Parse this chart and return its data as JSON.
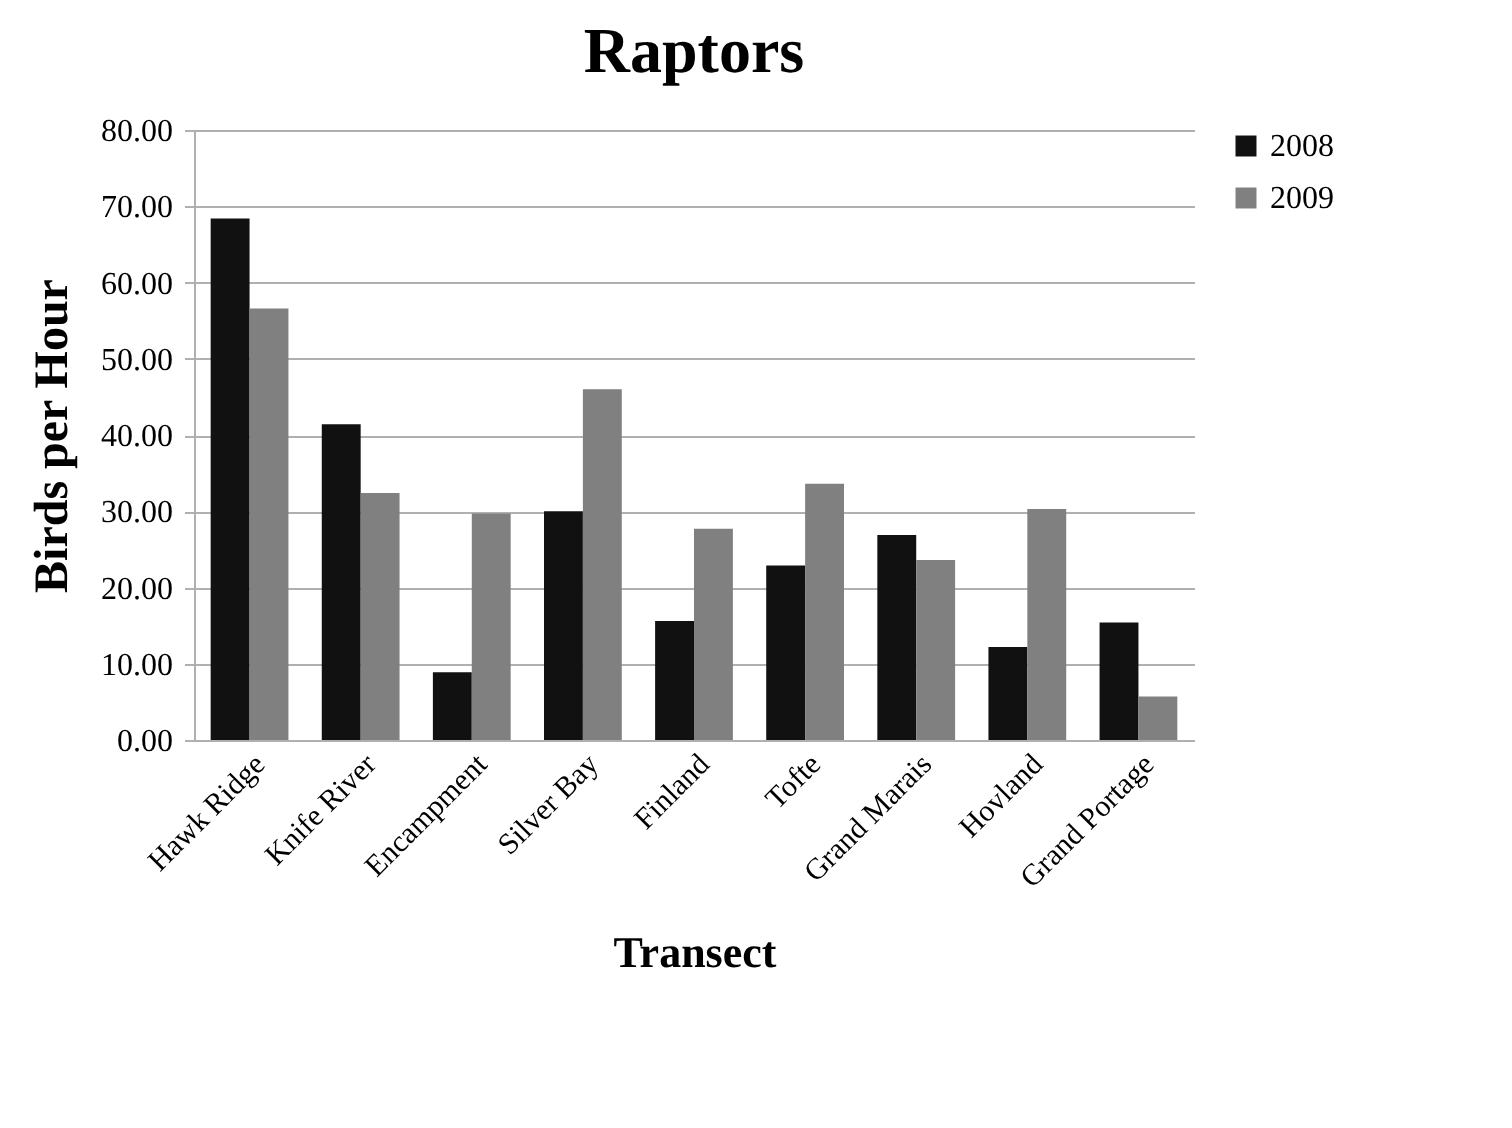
{
  "chart_data": {
    "type": "bar",
    "title": "Raptors",
    "xlabel": "Transect",
    "ylabel": "Birds per Hour",
    "categories": [
      "Hawk Ridge",
      "Knife River",
      "Encampment",
      "Silver Bay",
      "Finland",
      "Tofte",
      "Grand Marais",
      "Hovland",
      "Grand Portage"
    ],
    "series": [
      {
        "name": "2008",
        "color": "#111111",
        "values": [
          68.4,
          41.4,
          8.9,
          30.0,
          15.6,
          22.9,
          26.9,
          12.2,
          15.4
        ]
      },
      {
        "name": "2009",
        "color": "#808080",
        "values": [
          56.6,
          32.4,
          29.7,
          46.0,
          27.7,
          33.6,
          23.6,
          30.3,
          5.7
        ]
      }
    ],
    "ylim": [
      0,
      80
    ],
    "yticks": [
      {
        "value": 0,
        "label": "0.00"
      },
      {
        "value": 10,
        "label": "10.00"
      },
      {
        "value": 20,
        "label": "20.00"
      },
      {
        "value": 30,
        "label": "30.00"
      },
      {
        "value": 40,
        "label": "40.00"
      },
      {
        "value": 50,
        "label": "50.00"
      },
      {
        "value": 60,
        "label": "60.00"
      },
      {
        "value": 70,
        "label": "70.00"
      },
      {
        "value": 80,
        "label": "80.00"
      }
    ],
    "grid": "y",
    "legend": "right"
  }
}
